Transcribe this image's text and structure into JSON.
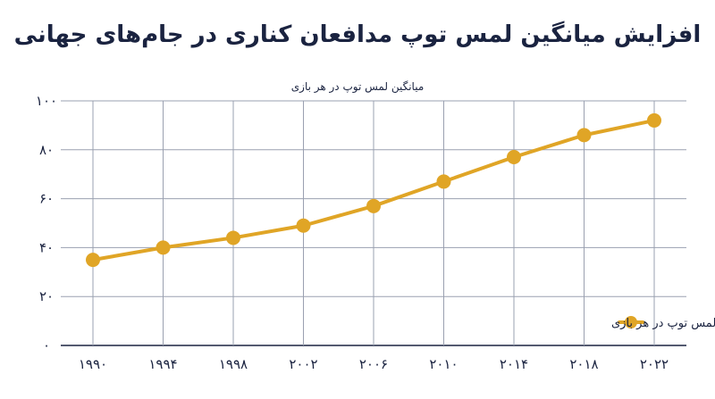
{
  "title": "افزایش میانگین لمس توپ مدافعان کناری در جام‌های جهانی",
  "chart_data": {
    "type": "line",
    "title": "افزایش میانگین لمس توپ مدافعان کناری در جام‌های جهانی",
    "ylabel": "میانگین لمس توپ در هر بازی",
    "xlabel": "",
    "categories": [
      "۱۹۹۰",
      "۱۹۹۴",
      "۱۹۹۸",
      "۲۰۰۲",
      "۲۰۰۶",
      "۲۰۱۰",
      "۲۰۱۴",
      "۲۰۱۸",
      "۲۰۲۲"
    ],
    "y_tick_labels": [
      "۰",
      "۲۰",
      "۴۰",
      "۶۰",
      "۸۰",
      "۱۰۰"
    ],
    "y_ticks": [
      0,
      20,
      40,
      60,
      80,
      100
    ],
    "ylim": [
      0,
      100
    ],
    "grid": true,
    "legend_position": "bottom-right",
    "series": [
      {
        "name": "میانگین لمس توپ در هر بازی",
        "color": "#e0a526",
        "values": [
          35,
          40,
          44,
          49,
          57,
          67,
          77,
          86,
          92
        ]
      }
    ]
  }
}
